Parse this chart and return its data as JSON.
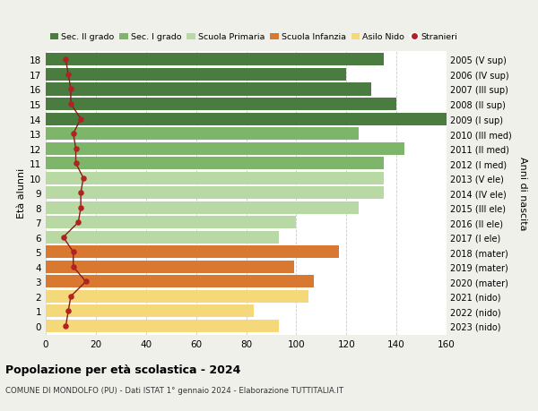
{
  "ages": [
    18,
    17,
    16,
    15,
    14,
    13,
    12,
    11,
    10,
    9,
    8,
    7,
    6,
    5,
    4,
    3,
    2,
    1,
    0
  ],
  "labels_right": [
    "2005 (V sup)",
    "2006 (IV sup)",
    "2007 (III sup)",
    "2008 (II sup)",
    "2009 (I sup)",
    "2010 (III med)",
    "2011 (II med)",
    "2012 (I med)",
    "2013 (V ele)",
    "2014 (IV ele)",
    "2015 (III ele)",
    "2016 (II ele)",
    "2017 (I ele)",
    "2018 (mater)",
    "2019 (mater)",
    "2020 (mater)",
    "2021 (nido)",
    "2022 (nido)",
    "2023 (nido)"
  ],
  "bar_values": [
    135,
    120,
    130,
    140,
    162,
    125,
    143,
    135,
    135,
    135,
    125,
    100,
    93,
    117,
    99,
    107,
    105,
    83,
    93
  ],
  "stranieri_values": [
    8,
    9,
    10,
    10,
    14,
    11,
    12,
    12,
    15,
    14,
    14,
    13,
    7,
    11,
    11,
    16,
    10,
    9,
    8
  ],
  "bar_colors": [
    "#4a7c3f",
    "#4a7c3f",
    "#4a7c3f",
    "#4a7c3f",
    "#4a7c3f",
    "#7db56a",
    "#7db56a",
    "#7db56a",
    "#b8d9a3",
    "#b8d9a3",
    "#b8d9a3",
    "#b8d9a3",
    "#b8d9a3",
    "#d97830",
    "#d97830",
    "#d97830",
    "#f5d87a",
    "#f5d87a",
    "#f5d87a"
  ],
  "legend_labels": [
    "Sec. II grado",
    "Sec. I grado",
    "Scuola Primaria",
    "Scuola Infanzia",
    "Asilo Nido",
    "Stranieri"
  ],
  "legend_colors": [
    "#4a7c3f",
    "#7db56a",
    "#b8d9a3",
    "#d97830",
    "#f5d87a",
    "#b22222"
  ],
  "stranieri_color": "#b22222",
  "stranieri_line_color": "#8b1a1a",
  "title": "Popolazione per età scolastica - 2024",
  "subtitle": "COMUNE DI MONDOLFO (PU) - Dati ISTAT 1° gennaio 2024 - Elaborazione TUTTITALIA.IT",
  "ylabel_left": "Età alunni",
  "ylabel_right": "Anni di nascita",
  "xlim": [
    0,
    160
  ],
  "xticks": [
    0,
    20,
    40,
    60,
    80,
    100,
    120,
    140,
    160
  ],
  "bg_color": "#f0f0eb",
  "bar_bg_color": "#ffffff"
}
